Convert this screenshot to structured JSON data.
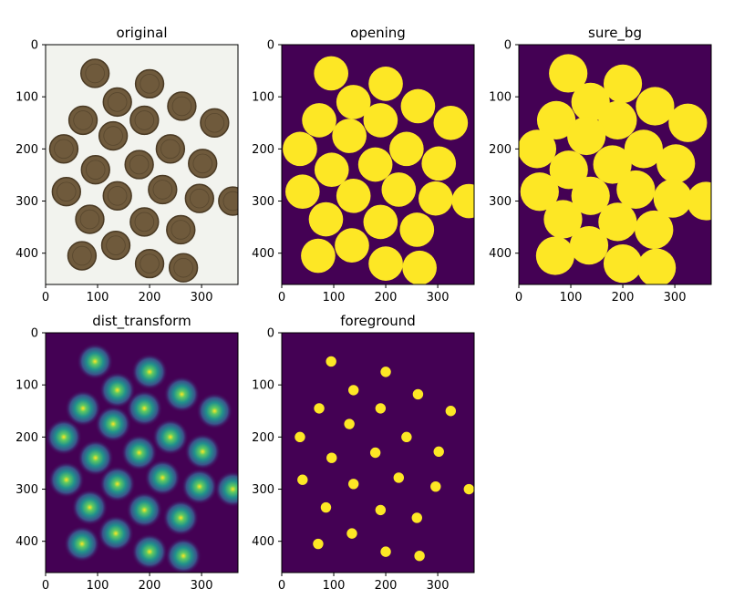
{
  "figure": {
    "background": "#ffffff"
  },
  "chart_data": [
    {
      "type": "image",
      "title": "original",
      "xlim": [
        0,
        370
      ],
      "ylim": [
        0,
        460
      ],
      "xticks": [
        0,
        100,
        200,
        300
      ],
      "yticks": [
        0,
        100,
        200,
        300,
        400
      ],
      "xtick_labels": [
        "0",
        "100",
        "200",
        "300"
      ],
      "ytick_labels": [
        "0",
        "100",
        "200",
        "300",
        "400"
      ],
      "colors": {
        "background": "#f2f3ee",
        "coin_fill": "#6f5a3c",
        "coin_rim": "#4a3a24"
      }
    },
    {
      "type": "image",
      "title": "opening",
      "xlim": [
        0,
        370
      ],
      "ylim": [
        0,
        460
      ],
      "xticks": [
        0,
        100,
        200,
        300
      ],
      "yticks": [
        0,
        100,
        200,
        300,
        400
      ],
      "xtick_labels": [
        "0",
        "100",
        "200",
        "300"
      ],
      "ytick_labels": [
        "0",
        "100",
        "200",
        "300",
        "400"
      ],
      "colors": {
        "background": "#440154",
        "mask": "#fde725"
      }
    },
    {
      "type": "image",
      "title": "sure_bg",
      "xlim": [
        0,
        370
      ],
      "ylim": [
        0,
        460
      ],
      "xticks": [
        0,
        100,
        200,
        300
      ],
      "yticks": [
        0,
        100,
        200,
        300,
        400
      ],
      "xtick_labels": [
        "0",
        "100",
        "200",
        "300"
      ],
      "ytick_labels": [
        "0",
        "100",
        "200",
        "300",
        "400"
      ],
      "colors": {
        "background": "#440154",
        "mask": "#fde725"
      }
    },
    {
      "type": "heatmap",
      "title": "dist_transform",
      "xlim": [
        0,
        370
      ],
      "ylim": [
        0,
        460
      ],
      "xticks": [
        0,
        100,
        200,
        300
      ],
      "yticks": [
        0,
        100,
        200,
        300,
        400
      ],
      "xtick_labels": [
        "0",
        "100",
        "200",
        "300"
      ],
      "ytick_labels": [
        "0",
        "100",
        "200",
        "300",
        "400"
      ],
      "colors": {
        "background": "#440154",
        "gradient": [
          "#fde725",
          "#5ec962",
          "#21918c",
          "#3b528b",
          "#440154"
        ]
      }
    },
    {
      "type": "image",
      "title": "foreground",
      "xlim": [
        0,
        370
      ],
      "ylim": [
        0,
        460
      ],
      "xticks": [
        0,
        100,
        200,
        300
      ],
      "yticks": [
        0,
        100,
        200,
        300,
        400
      ],
      "xtick_labels": [
        "0",
        "100",
        "200",
        "300"
      ],
      "ytick_labels": [
        "0",
        "100",
        "200",
        "300",
        "400"
      ],
      "colors": {
        "background": "#440154",
        "mask": "#fde725"
      }
    }
  ],
  "coins": {
    "centers": [
      [
        95,
        55
      ],
      [
        200,
        75
      ],
      [
        138,
        110
      ],
      [
        262,
        118
      ],
      [
        72,
        145
      ],
      [
        190,
        145
      ],
      [
        325,
        150
      ],
      [
        130,
        175
      ],
      [
        35,
        200
      ],
      [
        240,
        200
      ],
      [
        96,
        240
      ],
      [
        180,
        230
      ],
      [
        302,
        228
      ],
      [
        40,
        282
      ],
      [
        225,
        278
      ],
      [
        138,
        290
      ],
      [
        296,
        295
      ],
      [
        360,
        300
      ],
      [
        85,
        335
      ],
      [
        190,
        340
      ],
      [
        260,
        355
      ],
      [
        135,
        385
      ],
      [
        70,
        405
      ],
      [
        200,
        420
      ],
      [
        265,
        428
      ]
    ],
    "radius": 33,
    "fg_radius": 10
  }
}
